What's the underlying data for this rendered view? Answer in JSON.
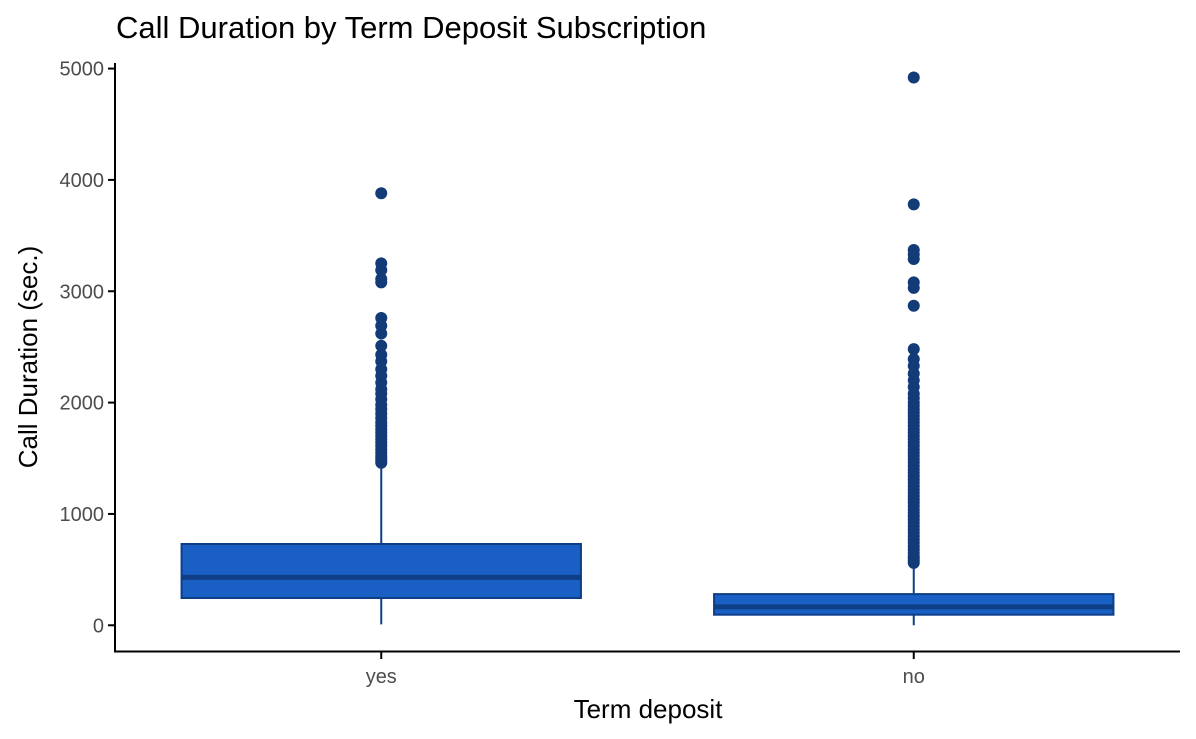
{
  "chart_data": {
    "type": "boxplot",
    "title": "Call Duration by Term Deposit Subscription",
    "xlabel": "Term deposit",
    "ylabel": "Call Duration (sec.)",
    "ylim": [
      -240,
      5050
    ],
    "yticks": [
      0,
      1000,
      2000,
      3000,
      4000,
      5000
    ],
    "categories": [
      "yes",
      "no"
    ],
    "grid": false,
    "legend": "none",
    "colors": {
      "fill": "#1a5fc4",
      "stroke": "#0e3f86",
      "outlier": "#123b78",
      "axis": "#000000"
    },
    "boxes": [
      {
        "category": "yes",
        "whisker_low": 8,
        "q1": 245,
        "median": 430,
        "q3": 730,
        "whisker_high": 1450,
        "outliers": [
          1460,
          1480,
          1500,
          1520,
          1550,
          1580,
          1610,
          1640,
          1670,
          1700,
          1730,
          1760,
          1790,
          1820,
          1860,
          1900,
          1940,
          1980,
          2030,
          2080,
          2120,
          2180,
          2240,
          2300,
          2370,
          2430,
          2510,
          2620,
          2690,
          2760,
          3080,
          3110,
          3190,
          3250,
          3880
        ]
      },
      {
        "category": "no",
        "whisker_low": 0,
        "q1": 95,
        "median": 165,
        "q3": 280,
        "whisker_high": 550,
        "outliers": [
          560,
          580,
          600,
          620,
          650,
          680,
          710,
          740,
          770,
          800,
          830,
          860,
          890,
          920,
          950,
          980,
          1010,
          1040,
          1070,
          1100,
          1130,
          1160,
          1190,
          1220,
          1250,
          1280,
          1310,
          1340,
          1370,
          1400,
          1430,
          1460,
          1490,
          1520,
          1550,
          1580,
          1610,
          1640,
          1670,
          1700,
          1730,
          1760,
          1790,
          1820,
          1850,
          1880,
          1910,
          1940,
          1970,
          2000,
          2040,
          2080,
          2140,
          2200,
          2260,
          2330,
          2390,
          2480,
          2870,
          3030,
          3080,
          3290,
          3330,
          3370,
          3780,
          4920
        ]
      }
    ]
  }
}
